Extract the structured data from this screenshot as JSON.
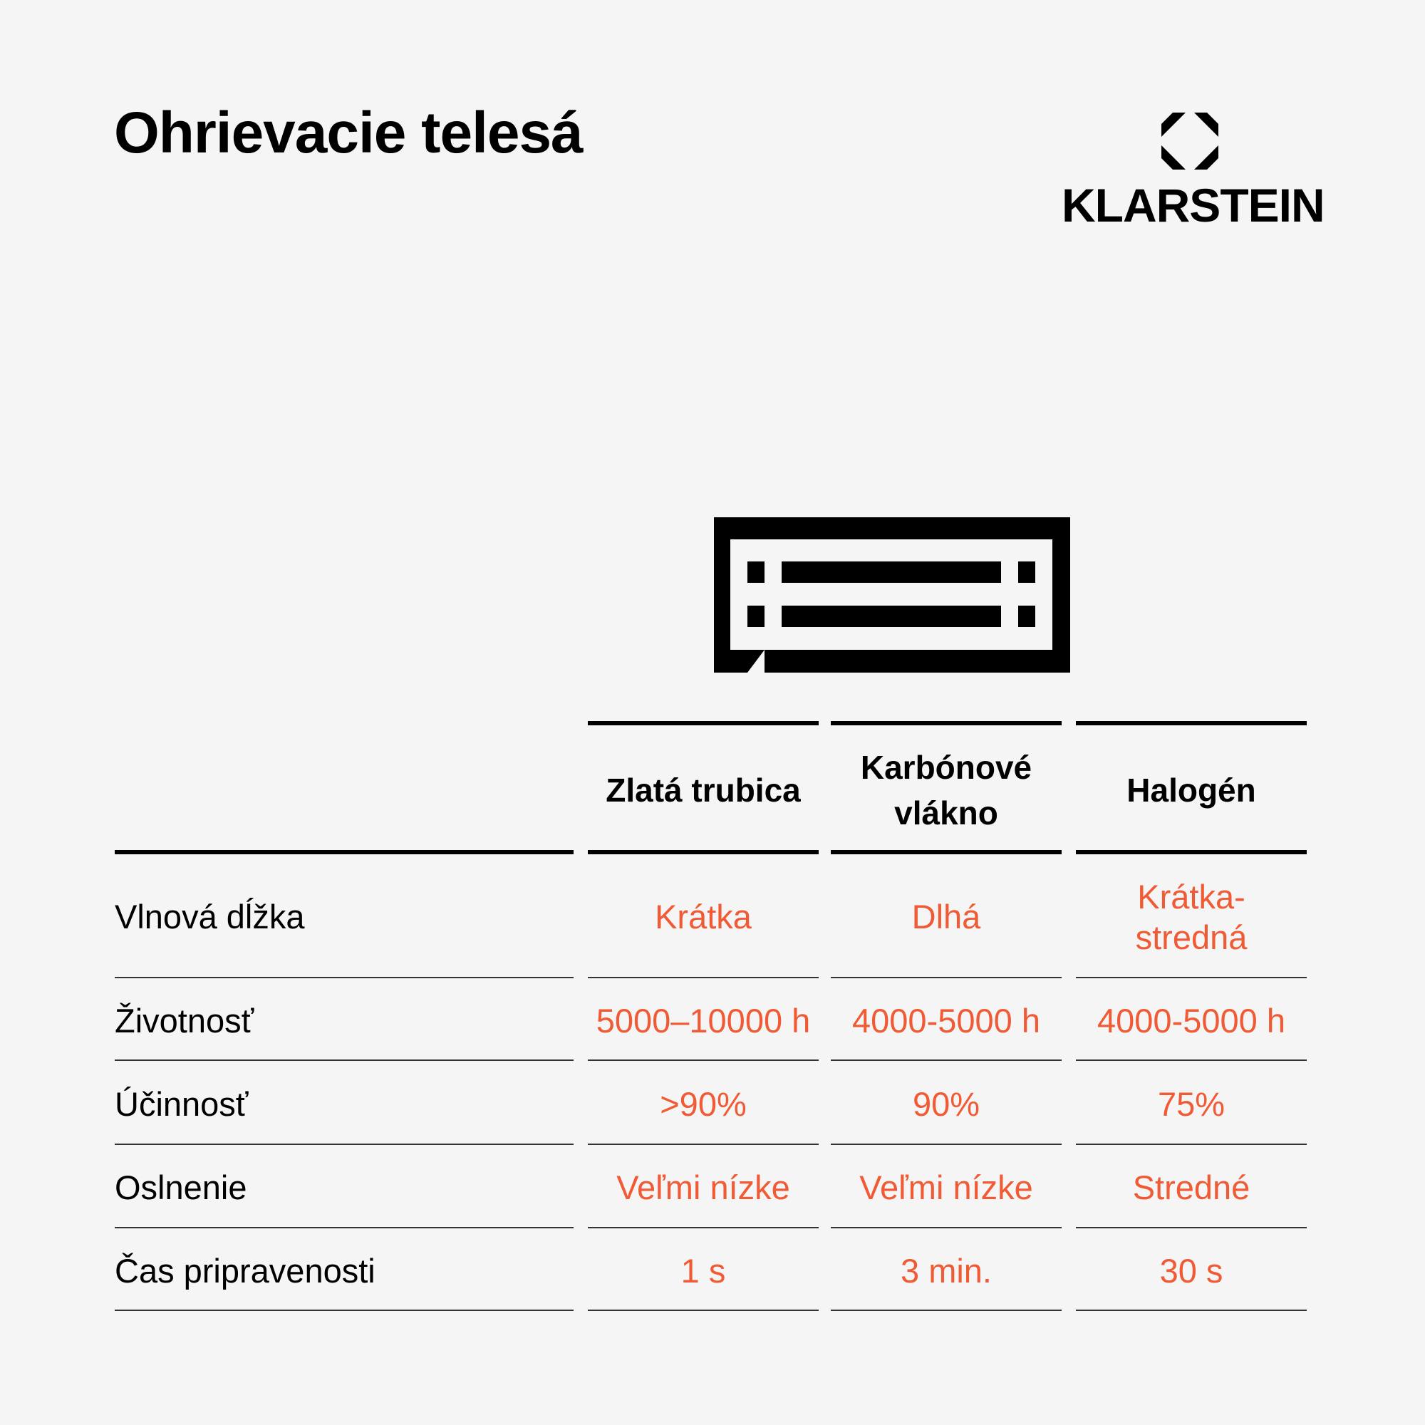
{
  "title": "Ohrievacie telesá",
  "brand": {
    "name": "KLARSTEIN"
  },
  "icons": {
    "logo": "klarstein-octagon-logo",
    "heater": "infrared-heater-icon"
  },
  "colors": {
    "accent": "#f05a34",
    "text": "#000000",
    "background": "#f5f5f5"
  },
  "table": {
    "columns": [
      "Zlatá trubica",
      "Karbónové vlákno",
      "Halogén"
    ],
    "rows": [
      {
        "label": "Vlnová dĺžka",
        "values": [
          "Krátka",
          "Dlhá",
          "Krátka-stredná"
        ]
      },
      {
        "label": "Životnosť",
        "values": [
          "5000–10000 h",
          "4000-5000 h",
          "4000-5000 h"
        ]
      },
      {
        "label": "Účinnosť",
        "values": [
          ">90%",
          "90%",
          "75%"
        ]
      },
      {
        "label": "Oslnenie",
        "values": [
          "Veľmi nízke",
          "Veľmi nízke",
          "Stredné"
        ]
      },
      {
        "label": "Čas pripravenosti",
        "values": [
          "1 s",
          "3 min.",
          "30 s"
        ]
      }
    ]
  }
}
